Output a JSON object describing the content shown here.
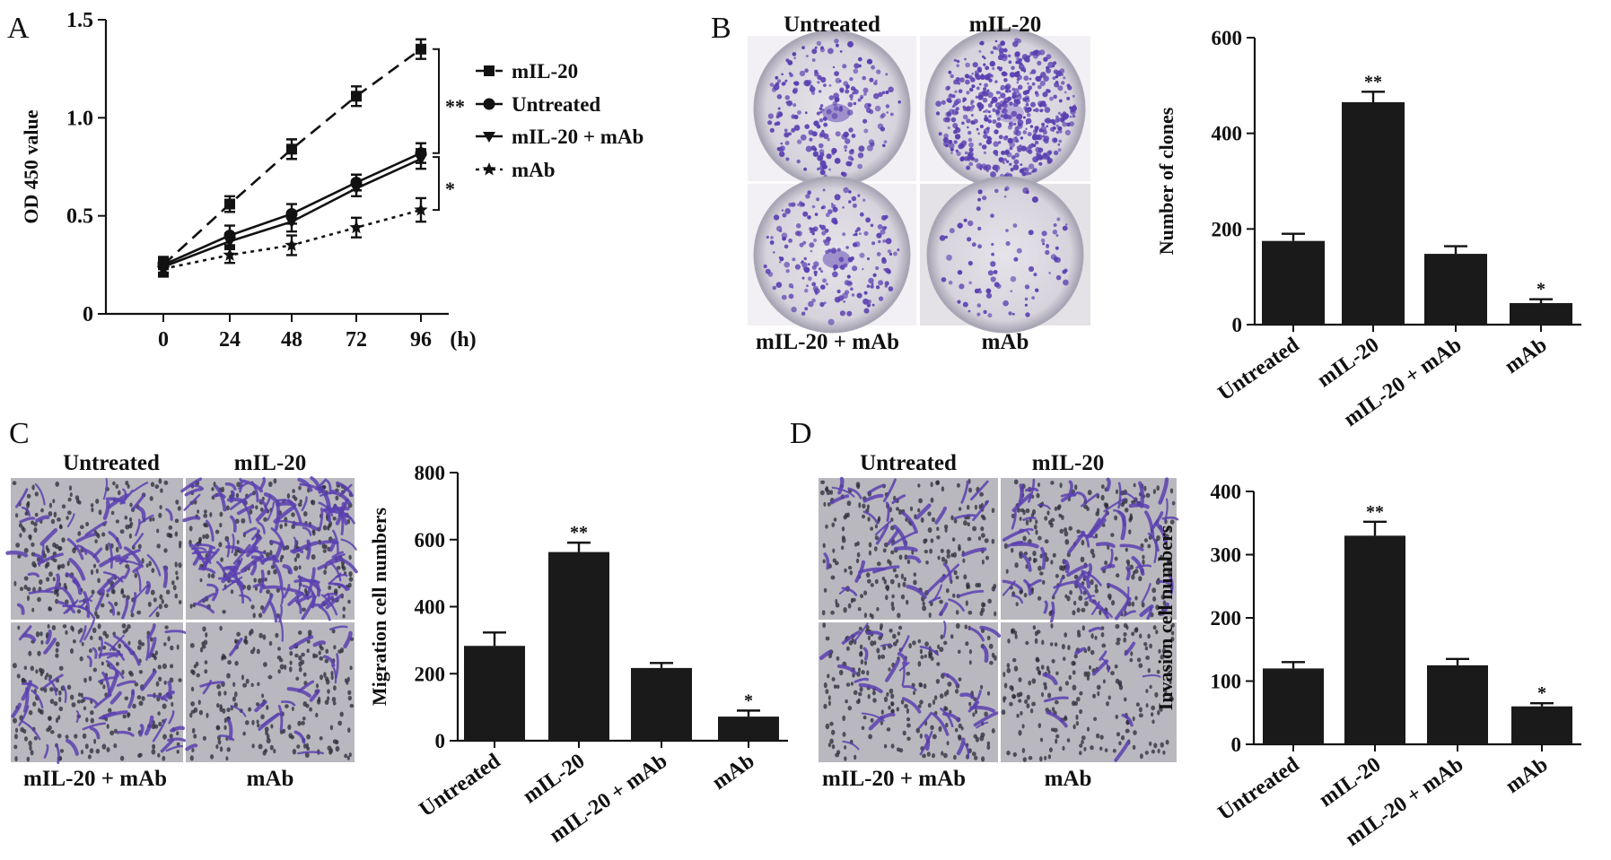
{
  "colors": {
    "ink": "#111111",
    "bar": "#1a1a1a",
    "stain": "#5a3fb0",
    "membrane": "#b9b8be",
    "plate": "#d9d6de",
    "plate_rim": "#a9a6b5"
  },
  "panels": {
    "A": {
      "letter": "A"
    },
    "B": {
      "letter": "B",
      "image_labels": [
        "Untreated",
        "mIL-20",
        "mIL-20 + mAb",
        "mAb"
      ]
    },
    "C": {
      "letter": "C",
      "image_labels": [
        "Untreated",
        "mIL-20",
        "mIL-20 + mAb",
        "mAb"
      ]
    },
    "D": {
      "letter": "D",
      "image_labels": [
        "Untreated",
        "mIL-20",
        "mIL-20 + mAb",
        "mAb"
      ]
    }
  },
  "chart_data": [
    {
      "id": "A",
      "type": "line",
      "xlabel": "(h)",
      "ylabel": "OD 450 value",
      "x": [
        0,
        24,
        48,
        72,
        96
      ],
      "x_tick_labels": [
        "0",
        "24",
        "48",
        "72",
        "96"
      ],
      "ylim": [
        0,
        1.5
      ],
      "y_tick_labels": [
        "0",
        "0.5",
        "1.0",
        "1.5"
      ],
      "y_ticks": [
        0,
        0.5,
        1.0,
        1.5
      ],
      "legend_position": "right",
      "series": [
        {
          "name": "mIL-20",
          "marker": "square",
          "dash": "long",
          "values": [
            0.25,
            0.56,
            0.84,
            1.11,
            1.35
          ],
          "errors": [
            0.04,
            0.04,
            0.05,
            0.05,
            0.05
          ]
        },
        {
          "name": "Untreated",
          "marker": "circle",
          "dash": "solid",
          "values": [
            0.25,
            0.4,
            0.51,
            0.67,
            0.82
          ],
          "errors": [
            0.04,
            0.05,
            0.05,
            0.04,
            0.05
          ]
        },
        {
          "name": "mIL-20 + mAb",
          "marker": "triangle-down",
          "dash": "solid",
          "values": [
            0.24,
            0.37,
            0.47,
            0.64,
            0.79
          ],
          "errors": [
            0.04,
            0.04,
            0.05,
            0.04,
            0.05
          ]
        },
        {
          "name": "mAb",
          "marker": "star",
          "dash": "dotted",
          "values": [
            0.23,
            0.3,
            0.35,
            0.44,
            0.53
          ],
          "errors": [
            0.04,
            0.04,
            0.05,
            0.05,
            0.06
          ]
        }
      ],
      "annotations": [
        "**",
        "*"
      ]
    },
    {
      "id": "B",
      "type": "bar",
      "ylabel": "Number of clones",
      "categories": [
        "Untreated",
        "mIL-20",
        "mIL-20 + mAb",
        "mAb"
      ],
      "values": [
        175,
        465,
        148,
        45
      ],
      "errors": [
        15,
        22,
        16,
        8
      ],
      "significance": [
        "",
        "**",
        "",
        "*"
      ],
      "ylim": [
        0,
        600
      ],
      "y_ticks": [
        0,
        200,
        400,
        600
      ]
    },
    {
      "id": "C",
      "type": "bar",
      "ylabel": "Migration cell numbers",
      "categories": [
        "Untreated",
        "mIL-20",
        "mIL-20 + mAb",
        "mAb"
      ],
      "values": [
        283,
        563,
        217,
        72
      ],
      "errors": [
        40,
        28,
        15,
        18
      ],
      "significance": [
        "",
        "**",
        "",
        "*"
      ],
      "ylim": [
        0,
        800
      ],
      "y_ticks": [
        0,
        200,
        400,
        600,
        800
      ]
    },
    {
      "id": "D",
      "type": "bar",
      "ylabel": "Invasion cell numbers",
      "categories": [
        "Untreated",
        "mIL-20",
        "mIL-20 + mAb",
        "mAb"
      ],
      "values": [
        120,
        330,
        125,
        60
      ],
      "errors": [
        10,
        22,
        10,
        5
      ],
      "significance": [
        "",
        "**",
        "",
        "*"
      ],
      "ylim": [
        0,
        400
      ],
      "y_ticks": [
        0,
        100,
        200,
        300,
        400
      ]
    }
  ]
}
